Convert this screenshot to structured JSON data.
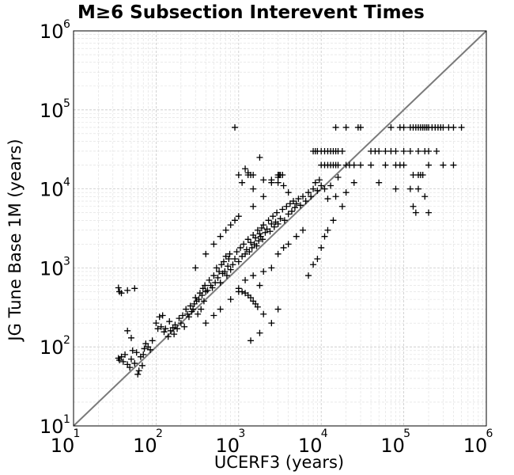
{
  "chart_data": {
    "type": "scatter",
    "title": "M≥6 Subsection Interevent Times",
    "xlabel": "UCERF3 (years)",
    "ylabel": "JG Tune Base 1M (years)",
    "xscale": "log",
    "yscale": "log",
    "xlim": [
      10,
      1000000
    ],
    "ylim": [
      10,
      1000000
    ],
    "tick_base": "10",
    "ticks": [
      {
        "value": 10,
        "exp": "1"
      },
      {
        "value": 100,
        "exp": "2"
      },
      {
        "value": 1000,
        "exp": "3"
      },
      {
        "value": 10000,
        "exp": "4"
      },
      {
        "value": 100000,
        "exp": "5"
      },
      {
        "value": 1000000,
        "exp": "6"
      }
    ],
    "grid": true,
    "marker": "+",
    "marker_color": "#000000",
    "reference_line": {
      "type": "y=x",
      "color": "#7a7a7a"
    },
    "series": [
      {
        "points": [
          [
            35,
            72
          ],
          [
            36,
            68
          ],
          [
            38,
            75
          ],
          [
            40,
            65
          ],
          [
            42,
            80
          ],
          [
            45,
            60
          ],
          [
            48,
            55
          ],
          [
            50,
            70
          ],
          [
            52,
            90
          ],
          [
            55,
            62
          ],
          [
            58,
            85
          ],
          [
            60,
            45
          ],
          [
            62,
            50
          ],
          [
            65,
            75
          ],
          [
            68,
            58
          ],
          [
            70,
            80
          ],
          [
            72,
            95
          ],
          [
            75,
            110
          ],
          [
            80,
            100
          ],
          [
            85,
            92
          ],
          [
            35,
            560
          ],
          [
            36,
            500
          ],
          [
            38,
            480
          ],
          [
            45,
            520
          ],
          [
            55,
            550
          ],
          [
            45,
            160
          ],
          [
            50,
            130
          ],
          [
            90,
            120
          ],
          [
            100,
            200
          ],
          [
            105,
            170
          ],
          [
            110,
            240
          ],
          [
            115,
            180
          ],
          [
            120,
            250
          ],
          [
            125,
            155
          ],
          [
            130,
            170
          ],
          [
            140,
            135
          ],
          [
            145,
            210
          ],
          [
            150,
            160
          ],
          [
            160,
            175
          ],
          [
            165,
            145
          ],
          [
            170,
            190
          ],
          [
            180,
            170
          ],
          [
            190,
            230
          ],
          [
            200,
            200
          ],
          [
            210,
            250
          ],
          [
            220,
            180
          ],
          [
            230,
            300
          ],
          [
            240,
            260
          ],
          [
            250,
            240
          ],
          [
            260,
            330
          ],
          [
            270,
            280
          ],
          [
            280,
            300
          ],
          [
            290,
            350
          ],
          [
            300,
            420
          ],
          [
            310,
            380
          ],
          [
            320,
            260
          ],
          [
            330,
            400
          ],
          [
            340,
            480
          ],
          [
            350,
            300
          ],
          [
            360,
            450
          ],
          [
            370,
            550
          ],
          [
            380,
            380
          ],
          [
            390,
            600
          ],
          [
            400,
            500
          ],
          [
            420,
            520
          ],
          [
            440,
            700
          ],
          [
            460,
            600
          ],
          [
            480,
            560
          ],
          [
            500,
            800
          ],
          [
            520,
            650
          ],
          [
            540,
            1000
          ],
          [
            560,
            750
          ],
          [
            580,
            900
          ],
          [
            600,
            650
          ],
          [
            620,
            1100
          ],
          [
            640,
            850
          ],
          [
            660,
            1200
          ],
          [
            680,
            900
          ],
          [
            700,
            1400
          ],
          [
            720,
            800
          ],
          [
            740,
            1050
          ],
          [
            760,
            1300
          ],
          [
            780,
            1500
          ],
          [
            800,
            950
          ],
          [
            850,
            1100
          ],
          [
            900,
            1300
          ],
          [
            950,
            1600
          ],
          [
            1000,
            1200
          ],
          [
            1050,
            1800
          ],
          [
            1100,
            1400
          ],
          [
            1150,
            2000
          ],
          [
            1200,
            1500
          ],
          [
            1250,
            1700
          ],
          [
            1300,
            2300
          ],
          [
            1350,
            1600
          ],
          [
            1400,
            2100
          ],
          [
            1450,
            1800
          ],
          [
            1500,
            2600
          ],
          [
            1550,
            2000
          ],
          [
            1600,
            2400
          ],
          [
            1650,
            1900
          ],
          [
            1700,
            3000
          ],
          [
            1750,
            2200
          ],
          [
            1800,
            2700
          ],
          [
            1850,
            2500
          ],
          [
            1900,
            3200
          ],
          [
            1950,
            2300
          ],
          [
            2000,
            3500
          ],
          [
            2100,
            2800
          ],
          [
            2200,
            3100
          ],
          [
            2300,
            4000
          ],
          [
            2400,
            2900
          ],
          [
            2500,
            3600
          ],
          [
            2600,
            4500
          ],
          [
            2700,
            3300
          ],
          [
            2800,
            3800
          ],
          [
            2900,
            5000
          ],
          [
            3000,
            3600
          ],
          [
            3200,
            4200
          ],
          [
            3400,
            5500
          ],
          [
            3600,
            4000
          ],
          [
            3800,
            6000
          ],
          [
            4000,
            4800
          ],
          [
            4200,
            6500
          ],
          [
            4400,
            5200
          ],
          [
            4600,
            7000
          ],
          [
            4800,
            5800
          ],
          [
            5000,
            6500
          ],
          [
            5300,
            7500
          ],
          [
            5600,
            6200
          ],
          [
            6000,
            8000
          ],
          [
            6500,
            7000
          ],
          [
            7000,
            9000
          ],
          [
            7500,
            8000
          ],
          [
            8000,
            10000
          ],
          [
            8500,
            12000
          ],
          [
            9000,
            9500
          ],
          [
            9500,
            13000
          ],
          [
            10000,
            11000
          ],
          [
            1200,
            700
          ],
          [
            1500,
            800
          ],
          [
            1800,
            600
          ],
          [
            2000,
            900
          ],
          [
            2500,
            1000
          ],
          [
            3000,
            1500
          ],
          [
            3500,
            1800
          ],
          [
            4000,
            2000
          ],
          [
            5000,
            2500
          ],
          [
            6000,
            3000
          ],
          [
            1000,
            500
          ],
          [
            800,
            400
          ],
          [
            600,
            300
          ],
          [
            500,
            250
          ],
          [
            400,
            200
          ],
          [
            300,
            1000
          ],
          [
            400,
            1500
          ],
          [
            500,
            2000
          ],
          [
            600,
            2500
          ],
          [
            800,
            3500
          ],
          [
            1000,
            4500
          ],
          [
            1500,
            6000
          ],
          [
            2000,
            8000
          ],
          [
            700,
            3000
          ],
          [
            900,
            4000
          ],
          [
            1000,
            550
          ],
          [
            1100,
            500
          ],
          [
            1200,
            480
          ],
          [
            1300,
            450
          ],
          [
            1400,
            420
          ],
          [
            1500,
            380
          ],
          [
            1600,
            350
          ],
          [
            1700,
            320
          ],
          [
            2000,
            260
          ],
          [
            3000,
            300
          ],
          [
            2500,
            200
          ],
          [
            1800,
            150
          ],
          [
            1400,
            120
          ],
          [
            7000,
            800
          ],
          [
            8000,
            1100
          ],
          [
            9000,
            1300
          ],
          [
            10000,
            1800
          ],
          [
            11000,
            2500
          ],
          [
            12000,
            3000
          ],
          [
            14000,
            4000
          ],
          [
            12000,
            7500
          ],
          [
            15000,
            8000
          ],
          [
            18000,
            6000
          ],
          [
            20000,
            9000
          ],
          [
            25000,
            12000
          ],
          [
            16000,
            14000
          ],
          [
            13000,
            11000
          ],
          [
            11000,
            10000
          ],
          [
            1000,
            15000
          ],
          [
            1100,
            12000
          ],
          [
            1200,
            18000
          ],
          [
            1300,
            16000
          ],
          [
            1500,
            10000
          ],
          [
            2000,
            13000
          ],
          [
            2500,
            12000
          ],
          [
            3000,
            14000
          ],
          [
            3500,
            11000
          ],
          [
            4000,
            9000
          ],
          [
            900,
            60000
          ],
          [
            1300,
            15000
          ],
          [
            1400,
            15000
          ],
          [
            1500,
            15000
          ],
          [
            3000,
            15000
          ],
          [
            3100,
            15000
          ],
          [
            3200,
            15000
          ],
          [
            3400,
            15000
          ],
          [
            8000,
            30000
          ],
          [
            8500,
            30000
          ],
          [
            9000,
            30000
          ],
          [
            10000,
            30000
          ],
          [
            11000,
            30000
          ],
          [
            12000,
            30000
          ],
          [
            13000,
            30000
          ],
          [
            14000,
            30000
          ],
          [
            15000,
            30000
          ],
          [
            16000,
            30000
          ],
          [
            18000,
            30000
          ],
          [
            10000,
            20000
          ],
          [
            11000,
            20000
          ],
          [
            12000,
            20000
          ],
          [
            13000,
            20000
          ],
          [
            14000,
            20000
          ],
          [
            15000,
            20000
          ],
          [
            16000,
            20000
          ],
          [
            20000,
            20000
          ],
          [
            22000,
            20000
          ],
          [
            25000,
            20000
          ],
          [
            15000,
            60000
          ],
          [
            20000,
            60000
          ],
          [
            28000,
            60000
          ],
          [
            30000,
            60000
          ],
          [
            30000,
            20000
          ],
          [
            40000,
            20000
          ],
          [
            60000,
            20000
          ],
          [
            80000,
            20000
          ],
          [
            90000,
            20000
          ],
          [
            100000,
            20000
          ],
          [
            60000,
            30000
          ],
          [
            70000,
            30000
          ],
          [
            80000,
            30000
          ],
          [
            100000,
            30000
          ],
          [
            120000,
            30000
          ],
          [
            150000,
            30000
          ],
          [
            180000,
            30000
          ],
          [
            200000,
            30000
          ],
          [
            250000,
            30000
          ],
          [
            70000,
            60000
          ],
          [
            90000,
            60000
          ],
          [
            100000,
            60000
          ],
          [
            120000,
            60000
          ],
          [
            130000,
            60000
          ],
          [
            140000,
            60000
          ],
          [
            150000,
            60000
          ],
          [
            160000,
            60000
          ],
          [
            170000,
            60000
          ],
          [
            180000,
            60000
          ],
          [
            190000,
            60000
          ],
          [
            200000,
            60000
          ],
          [
            220000,
            60000
          ],
          [
            240000,
            60000
          ],
          [
            260000,
            60000
          ],
          [
            280000,
            60000
          ],
          [
            300000,
            60000
          ],
          [
            350000,
            60000
          ],
          [
            400000,
            60000
          ],
          [
            500000,
            60000
          ],
          [
            40000,
            30000
          ],
          [
            50000,
            30000
          ],
          [
            45000,
            30000
          ],
          [
            130000,
            15000
          ],
          [
            150000,
            15000
          ],
          [
            160000,
            15000
          ],
          [
            170000,
            15000
          ],
          [
            200000,
            20000
          ],
          [
            300000,
            20000
          ],
          [
            400000,
            20000
          ],
          [
            120000,
            10000
          ],
          [
            150000,
            10000
          ],
          [
            180000,
            8000
          ],
          [
            130000,
            6000
          ],
          [
            140000,
            5000
          ],
          [
            200000,
            5000
          ],
          [
            50000,
            12000
          ],
          [
            80000,
            10000
          ],
          [
            2500,
            13000
          ],
          [
            3000,
            12000
          ],
          [
            1800,
            25000
          ]
        ]
      }
    ]
  }
}
